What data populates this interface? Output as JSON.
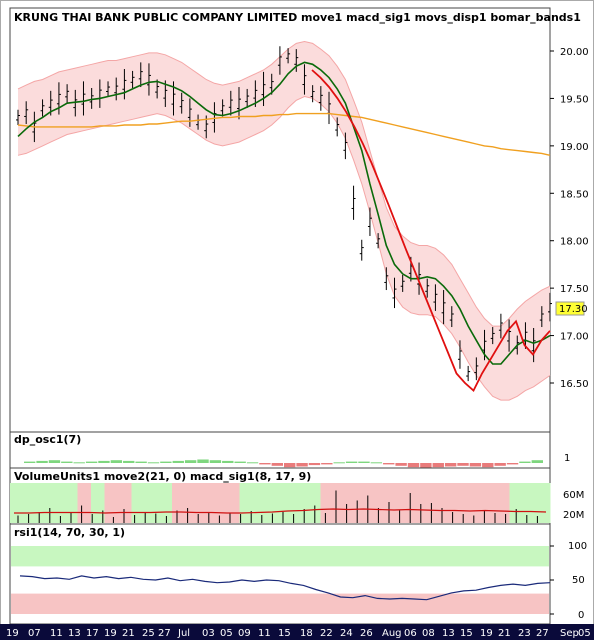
{
  "colors": {
    "background": "#ffffff",
    "band_fill": "#fbdcdc",
    "band_edge": "#f4a6a6",
    "moving_avg_fast": "#0a6a0a",
    "moving_avg_slow": "#f0a020",
    "trend_line": "#e01010",
    "last_price_tag": "#ffff33",
    "green_zone": "#c8f7c0",
    "red_zone": "#f7c4c4",
    "rsi_line": "#1a2a7a",
    "date_bar": "#0a0a3a"
  },
  "main": {
    "title": "KRUNG THAI BANK PUBLIC COMPANY LIMITED move1 macd_sig1 movs_disp1 bomar_bands1",
    "last_price": "17.30"
  },
  "dp": {
    "title": "dp_osc1(7)",
    "scale_label": "1"
  },
  "volume": {
    "title": "VolumeUnits1 move2(21, 0) macd_sig1(8, 17, 9)",
    "axis_labels": [
      "60M",
      "20M"
    ]
  },
  "rsi": {
    "title": "rsi1(14, 70, 30, 1)",
    "axis_labels": [
      "100",
      "50",
      "0"
    ]
  },
  "date_labels": [
    "19",
    "07",
    "11",
    "13",
    "17",
    "19",
    "21",
    "25",
    "27",
    "Jul",
    "03",
    "05",
    "09",
    "11",
    "15",
    "18",
    "22",
    "24",
    "26",
    "Aug",
    "06",
    "08",
    "13",
    "15",
    "19",
    "21",
    "23",
    "27",
    "Sep",
    "05"
  ],
  "chart_data": [
    {
      "type": "line",
      "title": "KRUNG THAI BANK PUBLIC COMPANY LIMITED move1 macd_sig1 movs_disp1 bomar_bands1",
      "ylim": [
        16.2,
        20.2
      ],
      "y_ticks": [
        "20.00",
        "19.50",
        "19.00",
        "18.50",
        "18.00",
        "17.50",
        "17.00",
        "16.50"
      ],
      "bars": [
        19.3,
        19.35,
        19.2,
        19.4,
        19.45,
        19.5,
        19.55,
        19.45,
        19.5,
        19.5,
        19.55,
        19.6,
        19.6,
        19.65,
        19.7,
        19.75,
        19.7,
        19.6,
        19.55,
        19.5,
        19.45,
        19.35,
        19.25,
        19.2,
        19.3,
        19.4,
        19.45,
        19.45,
        19.5,
        19.55,
        19.6,
        19.65,
        19.9,
        19.95,
        19.9,
        19.7,
        19.55,
        19.5,
        19.4,
        19.2,
        19.0,
        18.4,
        17.9,
        18.2,
        18.0,
        17.6,
        17.45,
        17.55,
        17.7,
        17.6,
        17.5,
        17.4,
        17.3,
        17.2,
        16.8,
        16.6,
        16.65,
        16.9,
        17.0,
        17.1,
        17.0,
        16.9,
        17.0,
        16.9,
        17.2,
        17.3
      ],
      "series": [
        {
          "name": "move1",
          "values": [
            19.1,
            19.18,
            19.25,
            19.3,
            19.36,
            19.4,
            19.45,
            19.46,
            19.47,
            19.49,
            19.5,
            19.52,
            19.54,
            19.56,
            19.6,
            19.64,
            19.67,
            19.68,
            19.65,
            19.62,
            19.58,
            19.52,
            19.45,
            19.38,
            19.33,
            19.32,
            19.34,
            19.37,
            19.41,
            19.45,
            19.5,
            19.56,
            19.65,
            19.76,
            19.84,
            19.88,
            19.86,
            19.8,
            19.72,
            19.6,
            19.45,
            19.2,
            18.95,
            18.6,
            18.28,
            17.95,
            17.75,
            17.65,
            17.6,
            17.6,
            17.62,
            17.6,
            17.52,
            17.42,
            17.28,
            17.1,
            16.95,
            16.8,
            16.7,
            16.7,
            16.8,
            16.9,
            16.95,
            16.92,
            16.95,
            17.0
          ]
        },
        {
          "name": "movs_disp1",
          "values": [
            19.22,
            19.21,
            19.2,
            19.2,
            19.2,
            19.2,
            19.2,
            19.2,
            19.2,
            19.2,
            19.21,
            19.21,
            19.21,
            19.22,
            19.22,
            19.22,
            19.23,
            19.23,
            19.24,
            19.25,
            19.26,
            19.26,
            19.27,
            19.28,
            19.29,
            19.3,
            19.3,
            19.31,
            19.31,
            19.31,
            19.32,
            19.32,
            19.33,
            19.33,
            19.34,
            19.34,
            19.34,
            19.34,
            19.34,
            19.33,
            19.32,
            19.31,
            19.3,
            19.28,
            19.26,
            19.24,
            19.22,
            19.2,
            19.18,
            19.16,
            19.14,
            19.12,
            19.1,
            19.08,
            19.06,
            19.04,
            19.02,
            19.0,
            18.99,
            18.97,
            18.96,
            18.95,
            18.94,
            18.93,
            18.92,
            18.9
          ]
        },
        {
          "name": "macd_sig1",
          "values": [
            19.8,
            19.72,
            19.62,
            19.5,
            19.36,
            19.2,
            19.02,
            18.82,
            18.6,
            18.38,
            18.15,
            17.92,
            17.7,
            17.48,
            17.26,
            17.04,
            16.82,
            16.6,
            16.5,
            16.42,
            16.6,
            16.75,
            16.9,
            17.05,
            17.15,
            16.9,
            16.8,
            16.95,
            17.05
          ]
        },
        {
          "name": "bomar_bands1_upper",
          "values": [
            19.6,
            19.64,
            19.68,
            19.7,
            19.74,
            19.78,
            19.8,
            19.82,
            19.84,
            19.86,
            19.88,
            19.9,
            19.9,
            19.92,
            19.94,
            19.96,
            19.98,
            19.98,
            19.96,
            19.92,
            19.88,
            19.82,
            19.76,
            19.7,
            19.66,
            19.64,
            19.66,
            19.68,
            19.72,
            19.76,
            19.8,
            19.86,
            19.94,
            20.02,
            20.08,
            20.1,
            20.08,
            20.02,
            19.95,
            19.84,
            19.7,
            19.48,
            19.25,
            18.95,
            18.65,
            18.35,
            18.15,
            18.05,
            17.98,
            17.95,
            17.95,
            17.92,
            17.85,
            17.75,
            17.6,
            17.45,
            17.3,
            17.18,
            17.1,
            17.1,
            17.18,
            17.28,
            17.36,
            17.42,
            17.48,
            17.52
          ]
        },
        {
          "name": "bomar_bands1_lower",
          "values": [
            18.9,
            18.92,
            18.96,
            19.0,
            19.04,
            19.08,
            19.12,
            19.14,
            19.16,
            19.18,
            19.2,
            19.22,
            19.24,
            19.26,
            19.28,
            19.3,
            19.32,
            19.34,
            19.32,
            19.28,
            19.24,
            19.18,
            19.12,
            19.06,
            19.02,
            19.0,
            19.02,
            19.04,
            19.08,
            19.12,
            19.16,
            19.22,
            19.3,
            19.4,
            19.48,
            19.52,
            19.5,
            19.44,
            19.36,
            19.24,
            19.08,
            18.85,
            18.6,
            18.3,
            17.98,
            17.65,
            17.42,
            17.3,
            17.24,
            17.22,
            17.22,
            17.2,
            17.12,
            17.02,
            16.88,
            16.72,
            16.58,
            16.46,
            16.36,
            16.32,
            16.32,
            16.36,
            16.42,
            16.46,
            16.52,
            16.58
          ]
        }
      ]
    },
    {
      "type": "bar",
      "title": "dp_osc1(7)",
      "values": [
        0.1,
        0.15,
        0.2,
        0.1,
        0.05,
        0.1,
        0.15,
        0.2,
        0.15,
        0.1,
        0.05,
        0.1,
        0.15,
        0.2,
        0.25,
        0.2,
        0.15,
        0.1,
        0.05,
        -0.1,
        -0.2,
        -0.3,
        -0.25,
        -0.15,
        -0.1,
        0.05,
        0.1,
        0.1,
        0.05,
        -0.1,
        -0.2,
        -0.3,
        -0.35,
        -0.3,
        -0.25,
        -0.2,
        -0.25,
        -0.3,
        -0.2,
        -0.1,
        0.1,
        0.2
      ]
    },
    {
      "type": "bar",
      "title": "VolumeUnits1 move2(21, 0) macd_sig1(8, 17, 9)",
      "ylim": [
        0,
        80
      ],
      "zones": [
        "green",
        "green",
        "green",
        "green",
        "green",
        "red",
        "green",
        "red",
        "red",
        "green",
        "green",
        "green",
        "red",
        "red",
        "red",
        "red",
        "red",
        "green",
        "green",
        "green",
        "green",
        "green",
        "green",
        "red",
        "red",
        "red",
        "red",
        "red",
        "red",
        "red",
        "red",
        "red",
        "red",
        "red",
        "red",
        "red",
        "red",
        "green",
        "green",
        "green"
      ],
      "values": [
        15,
        18,
        22,
        30,
        14,
        20,
        35,
        18,
        25,
        12,
        28,
        16,
        22,
        19,
        14,
        25,
        30,
        18,
        22,
        15,
        20,
        18,
        24,
        16,
        19,
        22,
        18,
        28,
        35,
        20,
        65,
        38,
        45,
        55,
        30,
        42,
        25,
        60,
        38,
        40,
        30,
        22,
        18,
        15,
        25,
        20,
        18,
        28,
        16,
        14
      ],
      "series": [
        {
          "name": "move2",
          "values": [
            20,
            20,
            21,
            21,
            21,
            21,
            20,
            21,
            21,
            21,
            22,
            22,
            21,
            21,
            20,
            20,
            21,
            22,
            24,
            25,
            27,
            28,
            27,
            28,
            27,
            26,
            27,
            26,
            25,
            25,
            24,
            25,
            24,
            23,
            23,
            22
          ]
        }
      ]
    },
    {
      "type": "line",
      "title": "rsi1(14, 70, 30, 1)",
      "ylim": [
        0,
        100
      ],
      "y_ticks": [
        "100",
        "50",
        "0"
      ],
      "zones": [
        {
          "from": 70,
          "to": 100,
          "color": "green"
        },
        {
          "from": 0,
          "to": 30,
          "color": "red"
        }
      ],
      "series": [
        {
          "name": "rsi1",
          "values": [
            56,
            55,
            52,
            53,
            51,
            56,
            53,
            55,
            52,
            54,
            51,
            50,
            53,
            49,
            51,
            48,
            46,
            47,
            50,
            48,
            50,
            49,
            45,
            42,
            36,
            31,
            25,
            24,
            27,
            23,
            22,
            23,
            22,
            21,
            26,
            31,
            34,
            35,
            39,
            42,
            44,
            42,
            45,
            46
          ]
        }
      ]
    }
  ]
}
